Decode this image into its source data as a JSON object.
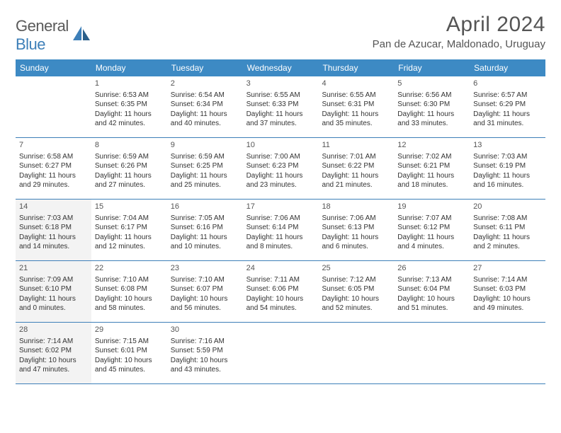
{
  "logo": {
    "word1": "General",
    "word2": "Blue"
  },
  "title": "April 2024",
  "location": "Pan de Azucar, Maldonado, Uruguay",
  "colors": {
    "header_bg": "#3d8ac4",
    "rule": "#3d7fb8",
    "shade": "#f3f3f3",
    "text": "#333333",
    "title_text": "#555555"
  },
  "weekdays": [
    "Sunday",
    "Monday",
    "Tuesday",
    "Wednesday",
    "Thursday",
    "Friday",
    "Saturday"
  ],
  "weeks": [
    [
      {
        "n": "",
        "sr": "",
        "ss": "",
        "dl": "",
        "shade": false
      },
      {
        "n": "1",
        "sr": "Sunrise: 6:53 AM",
        "ss": "Sunset: 6:35 PM",
        "dl": "Daylight: 11 hours and 42 minutes.",
        "shade": false
      },
      {
        "n": "2",
        "sr": "Sunrise: 6:54 AM",
        "ss": "Sunset: 6:34 PM",
        "dl": "Daylight: 11 hours and 40 minutes.",
        "shade": false
      },
      {
        "n": "3",
        "sr": "Sunrise: 6:55 AM",
        "ss": "Sunset: 6:33 PM",
        "dl": "Daylight: 11 hours and 37 minutes.",
        "shade": false
      },
      {
        "n": "4",
        "sr": "Sunrise: 6:55 AM",
        "ss": "Sunset: 6:31 PM",
        "dl": "Daylight: 11 hours and 35 minutes.",
        "shade": false
      },
      {
        "n": "5",
        "sr": "Sunrise: 6:56 AM",
        "ss": "Sunset: 6:30 PM",
        "dl": "Daylight: 11 hours and 33 minutes.",
        "shade": false
      },
      {
        "n": "6",
        "sr": "Sunrise: 6:57 AM",
        "ss": "Sunset: 6:29 PM",
        "dl": "Daylight: 11 hours and 31 minutes.",
        "shade": false
      }
    ],
    [
      {
        "n": "7",
        "sr": "Sunrise: 6:58 AM",
        "ss": "Sunset: 6:27 PM",
        "dl": "Daylight: 11 hours and 29 minutes.",
        "shade": false
      },
      {
        "n": "8",
        "sr": "Sunrise: 6:59 AM",
        "ss": "Sunset: 6:26 PM",
        "dl": "Daylight: 11 hours and 27 minutes.",
        "shade": false
      },
      {
        "n": "9",
        "sr": "Sunrise: 6:59 AM",
        "ss": "Sunset: 6:25 PM",
        "dl": "Daylight: 11 hours and 25 minutes.",
        "shade": false
      },
      {
        "n": "10",
        "sr": "Sunrise: 7:00 AM",
        "ss": "Sunset: 6:23 PM",
        "dl": "Daylight: 11 hours and 23 minutes.",
        "shade": false
      },
      {
        "n": "11",
        "sr": "Sunrise: 7:01 AM",
        "ss": "Sunset: 6:22 PM",
        "dl": "Daylight: 11 hours and 21 minutes.",
        "shade": false
      },
      {
        "n": "12",
        "sr": "Sunrise: 7:02 AM",
        "ss": "Sunset: 6:21 PM",
        "dl": "Daylight: 11 hours and 18 minutes.",
        "shade": false
      },
      {
        "n": "13",
        "sr": "Sunrise: 7:03 AM",
        "ss": "Sunset: 6:19 PM",
        "dl": "Daylight: 11 hours and 16 minutes.",
        "shade": false
      }
    ],
    [
      {
        "n": "14",
        "sr": "Sunrise: 7:03 AM",
        "ss": "Sunset: 6:18 PM",
        "dl": "Daylight: 11 hours and 14 minutes.",
        "shade": true
      },
      {
        "n": "15",
        "sr": "Sunrise: 7:04 AM",
        "ss": "Sunset: 6:17 PM",
        "dl": "Daylight: 11 hours and 12 minutes.",
        "shade": false
      },
      {
        "n": "16",
        "sr": "Sunrise: 7:05 AM",
        "ss": "Sunset: 6:16 PM",
        "dl": "Daylight: 11 hours and 10 minutes.",
        "shade": false
      },
      {
        "n": "17",
        "sr": "Sunrise: 7:06 AM",
        "ss": "Sunset: 6:14 PM",
        "dl": "Daylight: 11 hours and 8 minutes.",
        "shade": false
      },
      {
        "n": "18",
        "sr": "Sunrise: 7:06 AM",
        "ss": "Sunset: 6:13 PM",
        "dl": "Daylight: 11 hours and 6 minutes.",
        "shade": false
      },
      {
        "n": "19",
        "sr": "Sunrise: 7:07 AM",
        "ss": "Sunset: 6:12 PM",
        "dl": "Daylight: 11 hours and 4 minutes.",
        "shade": false
      },
      {
        "n": "20",
        "sr": "Sunrise: 7:08 AM",
        "ss": "Sunset: 6:11 PM",
        "dl": "Daylight: 11 hours and 2 minutes.",
        "shade": false
      }
    ],
    [
      {
        "n": "21",
        "sr": "Sunrise: 7:09 AM",
        "ss": "Sunset: 6:10 PM",
        "dl": "Daylight: 11 hours and 0 minutes.",
        "shade": true
      },
      {
        "n": "22",
        "sr": "Sunrise: 7:10 AM",
        "ss": "Sunset: 6:08 PM",
        "dl": "Daylight: 10 hours and 58 minutes.",
        "shade": false
      },
      {
        "n": "23",
        "sr": "Sunrise: 7:10 AM",
        "ss": "Sunset: 6:07 PM",
        "dl": "Daylight: 10 hours and 56 minutes.",
        "shade": false
      },
      {
        "n": "24",
        "sr": "Sunrise: 7:11 AM",
        "ss": "Sunset: 6:06 PM",
        "dl": "Daylight: 10 hours and 54 minutes.",
        "shade": false
      },
      {
        "n": "25",
        "sr": "Sunrise: 7:12 AM",
        "ss": "Sunset: 6:05 PM",
        "dl": "Daylight: 10 hours and 52 minutes.",
        "shade": false
      },
      {
        "n": "26",
        "sr": "Sunrise: 7:13 AM",
        "ss": "Sunset: 6:04 PM",
        "dl": "Daylight: 10 hours and 51 minutes.",
        "shade": false
      },
      {
        "n": "27",
        "sr": "Sunrise: 7:14 AM",
        "ss": "Sunset: 6:03 PM",
        "dl": "Daylight: 10 hours and 49 minutes.",
        "shade": false
      }
    ],
    [
      {
        "n": "28",
        "sr": "Sunrise: 7:14 AM",
        "ss": "Sunset: 6:02 PM",
        "dl": "Daylight: 10 hours and 47 minutes.",
        "shade": true
      },
      {
        "n": "29",
        "sr": "Sunrise: 7:15 AM",
        "ss": "Sunset: 6:01 PM",
        "dl": "Daylight: 10 hours and 45 minutes.",
        "shade": false
      },
      {
        "n": "30",
        "sr": "Sunrise: 7:16 AM",
        "ss": "Sunset: 5:59 PM",
        "dl": "Daylight: 10 hours and 43 minutes.",
        "shade": false
      },
      {
        "n": "",
        "sr": "",
        "ss": "",
        "dl": "",
        "shade": false
      },
      {
        "n": "",
        "sr": "",
        "ss": "",
        "dl": "",
        "shade": false
      },
      {
        "n": "",
        "sr": "",
        "ss": "",
        "dl": "",
        "shade": false
      },
      {
        "n": "",
        "sr": "",
        "ss": "",
        "dl": "",
        "shade": false
      }
    ]
  ]
}
